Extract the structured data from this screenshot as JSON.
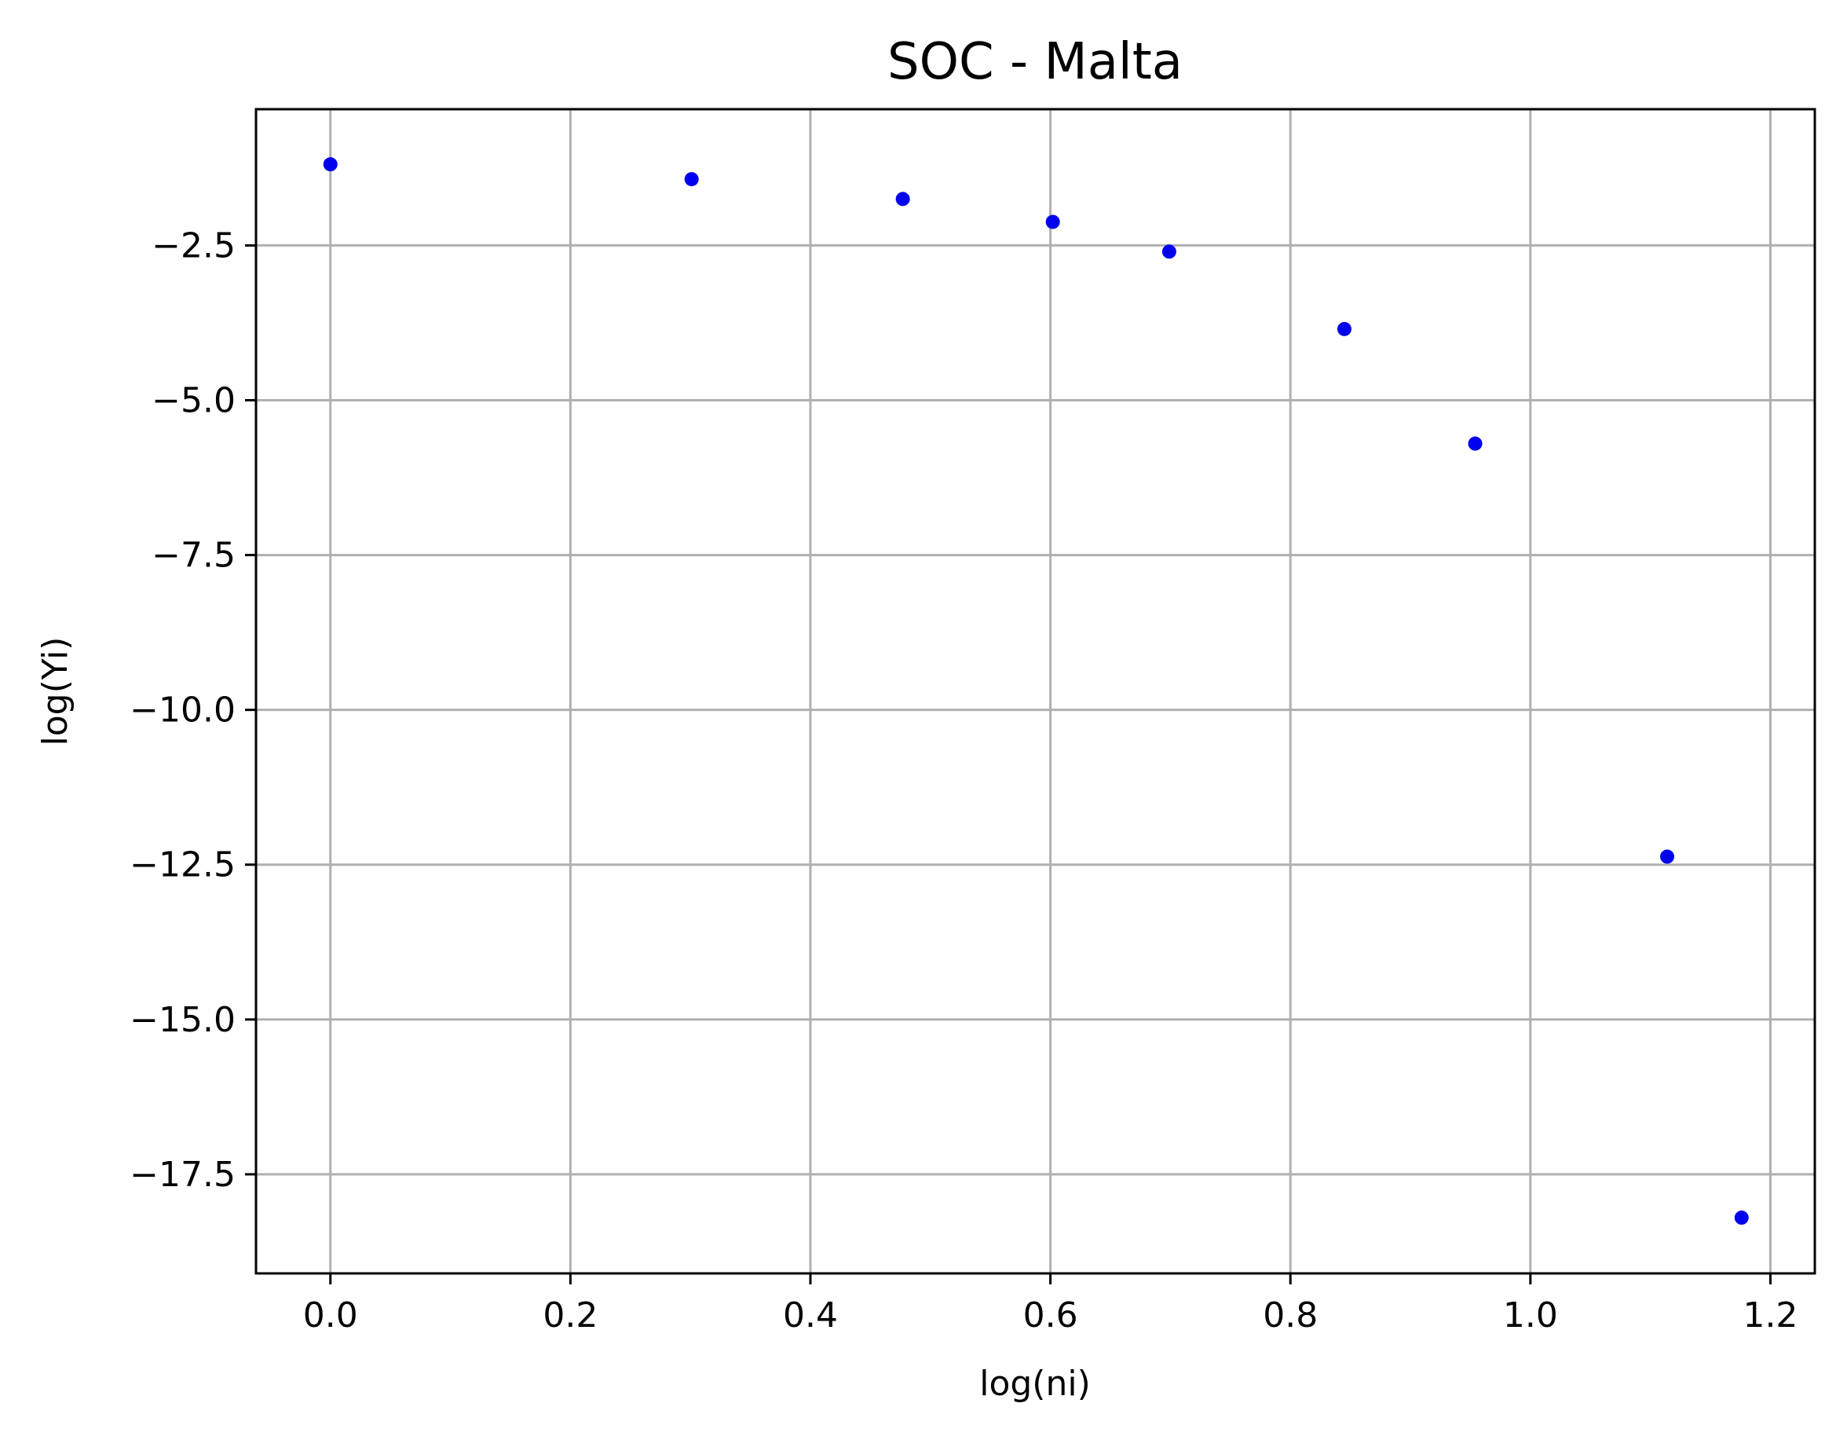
{
  "chart_data": {
    "type": "scatter",
    "title": "SOC - Malta",
    "xlabel": "log(ni)",
    "ylabel": "log(Yi)",
    "xlim": [
      -0.062,
      1.237
    ],
    "ylim": [
      -19.1,
      -0.3
    ],
    "xticks": [
      0.0,
      0.2,
      0.4,
      0.6,
      0.8,
      1.0,
      1.2
    ],
    "xtick_labels": [
      "0.0",
      "0.2",
      "0.4",
      "0.6",
      "0.8",
      "1.0",
      "1.2"
    ],
    "yticks": [
      -2.5,
      -5.0,
      -7.5,
      -10.0,
      -12.5,
      -15.0,
      -17.5
    ],
    "ytick_labels": [
      "−2.5",
      "−5.0",
      "−7.5",
      "−10.0",
      "−12.5",
      "−15.0",
      "−17.5"
    ],
    "grid": true,
    "series": [
      {
        "color": "#0000ee",
        "points": [
          {
            "x": 0.0,
            "y": -1.19
          },
          {
            "x": 0.301,
            "y": -1.43
          },
          {
            "x": 0.477,
            "y": -1.75
          },
          {
            "x": 0.602,
            "y": -2.12
          },
          {
            "x": 0.699,
            "y": -2.6
          },
          {
            "x": 0.845,
            "y": -3.85
          },
          {
            "x": 0.954,
            "y": -5.7
          },
          {
            "x": 1.114,
            "y": -12.37
          },
          {
            "x": 1.176,
            "y": -18.2
          }
        ]
      }
    ]
  }
}
